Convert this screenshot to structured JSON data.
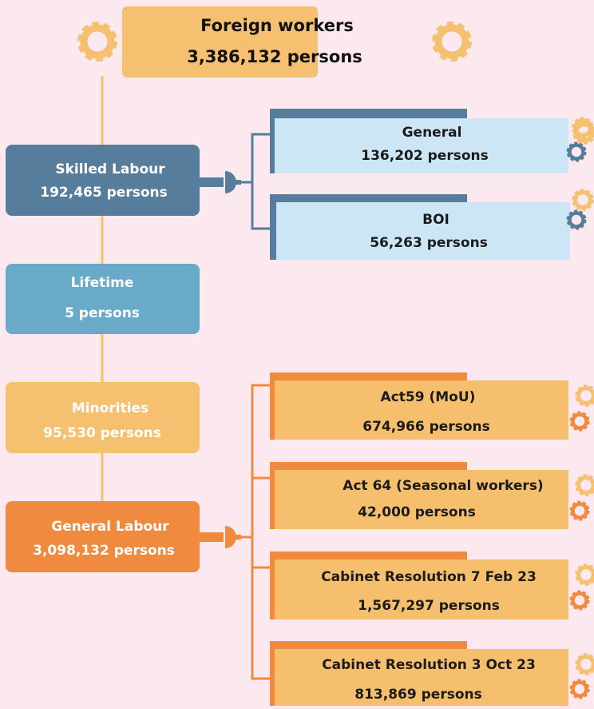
{
  "root": {
    "label": "Foreign workers",
    "count": "3,386,132 persons"
  },
  "categories": [
    {
      "label": "Skilled Labour",
      "count": "192,465 persons"
    },
    {
      "label": "Lifetime",
      "count": "5 persons"
    },
    {
      "label": "Minorities",
      "count": "95,530 persons"
    },
    {
      "label": "General Labour",
      "count": "3,098,132 persons"
    }
  ],
  "skilled_subgroups": [
    {
      "label": "General",
      "count": "136,202 persons"
    },
    {
      "label": "BOI",
      "count": "56,263 persons"
    }
  ],
  "general_subgroups": [
    {
      "label": "Act59 (MoU)",
      "count": "674,966 persons"
    },
    {
      "label": "Act 64 (Seasonal workers)",
      "count": "42,000 persons"
    },
    {
      "label": "Cabinet Resolution 7 Feb 23",
      "count": "1,567,297 persons"
    },
    {
      "label": "Cabinet Resolution 3 Oct 23",
      "count": "813,869 persons"
    }
  ]
}
